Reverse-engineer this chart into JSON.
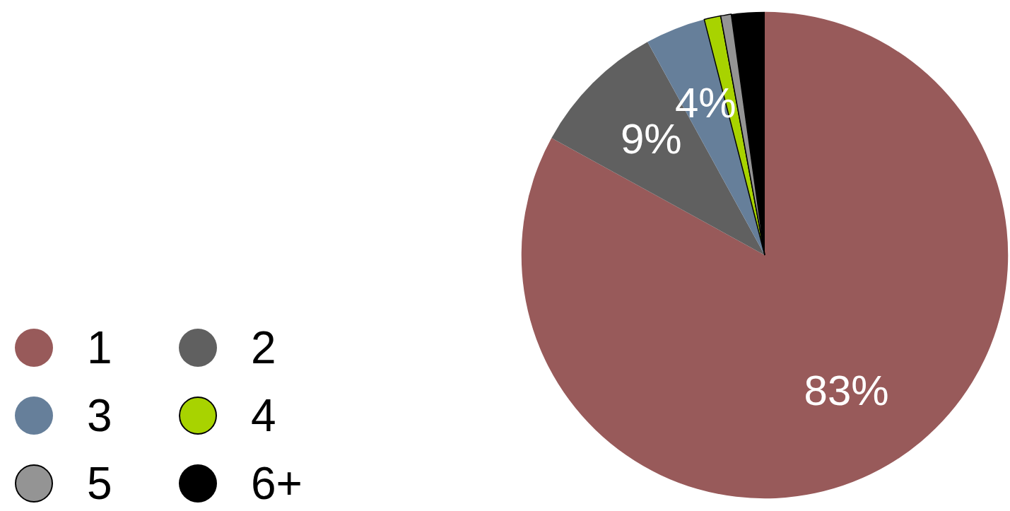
{
  "chart_data": {
    "type": "pie",
    "categories": [
      "1",
      "2",
      "3",
      "4",
      "5",
      "6+"
    ],
    "values": [
      83,
      9,
      4,
      1.1,
      0.7,
      2.2
    ],
    "colors": [
      "#985a5a",
      "#606060",
      "#667f9a",
      "#a8d300",
      "#949494",
      "#000000"
    ],
    "value_labels": [
      "83%",
      "9%",
      "4%",
      null,
      null,
      null
    ],
    "legend": "bottom left"
  }
}
